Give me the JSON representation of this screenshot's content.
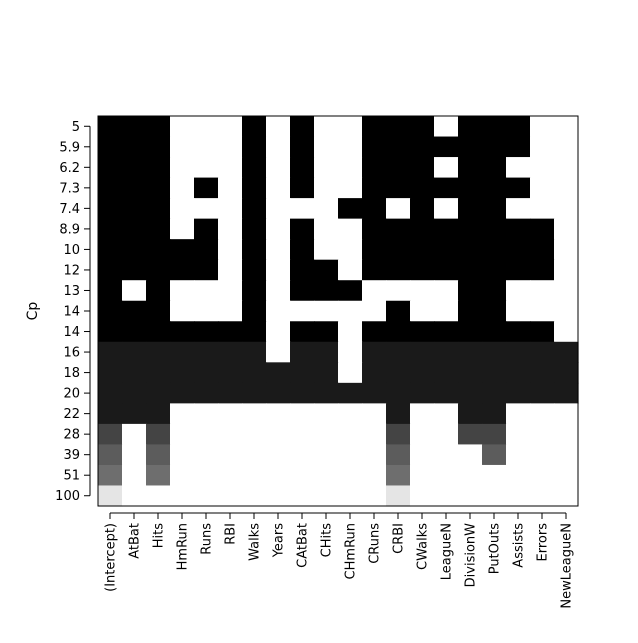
{
  "chart_data": {
    "type": "heatmap",
    "title": "",
    "ylabel": "Cp",
    "xlabel": "",
    "x_categories": [
      "(Intercept)",
      "AtBat",
      "Hits",
      "HmRun",
      "Runs",
      "RBI",
      "Walks",
      "Years",
      "CAtBat",
      "CHits",
      "CHmRun",
      "CRuns",
      "CRBI",
      "CWalks",
      "LeagueN",
      "DivisionW",
      "PutOuts",
      "Assists",
      "Errors",
      "NewLeagueN"
    ],
    "y_categories": [
      "5",
      "5.9",
      "6.2",
      "7.3",
      "7.4",
      "8.9",
      "10",
      "12",
      "13",
      "14",
      "14",
      "16",
      "18",
      "20",
      "22",
      "28",
      "39",
      "51",
      "100"
    ],
    "row_colors": [
      "#000000",
      "#000000",
      "#000000",
      "#000000",
      "#000000",
      "#000000",
      "#000000",
      "#000000",
      "#000000",
      "#000000",
      "#000000",
      "#1a1a1a",
      "#1a1a1a",
      "#1a1a1a",
      "#1a1a1a",
      "#444444",
      "#5c5c5c",
      "#6e6e6e",
      "#e5e5e5"
    ],
    "matrix": [
      [
        1,
        1,
        1,
        0,
        0,
        0,
        1,
        0,
        1,
        0,
        0,
        1,
        1,
        1,
        0,
        1,
        1,
        1,
        0,
        0
      ],
      [
        1,
        1,
        1,
        0,
        0,
        0,
        1,
        0,
        1,
        0,
        0,
        1,
        1,
        1,
        1,
        1,
        1,
        1,
        0,
        0
      ],
      [
        1,
        1,
        1,
        0,
        0,
        0,
        1,
        0,
        1,
        0,
        0,
        1,
        1,
        1,
        0,
        1,
        1,
        0,
        0,
        0
      ],
      [
        1,
        1,
        1,
        0,
        1,
        0,
        1,
        0,
        1,
        0,
        0,
        1,
        1,
        1,
        1,
        1,
        1,
        1,
        0,
        0
      ],
      [
        1,
        1,
        1,
        0,
        0,
        0,
        1,
        0,
        0,
        0,
        1,
        1,
        0,
        1,
        0,
        1,
        1,
        0,
        0,
        0
      ],
      [
        1,
        1,
        1,
        0,
        1,
        0,
        1,
        0,
        1,
        0,
        0,
        1,
        1,
        1,
        1,
        1,
        1,
        1,
        1,
        0
      ],
      [
        1,
        1,
        1,
        1,
        1,
        0,
        1,
        0,
        1,
        0,
        0,
        1,
        1,
        1,
        1,
        1,
        1,
        1,
        1,
        0
      ],
      [
        1,
        1,
        1,
        1,
        1,
        0,
        1,
        0,
        1,
        1,
        0,
        1,
        1,
        1,
        1,
        1,
        1,
        1,
        1,
        0
      ],
      [
        1,
        0,
        1,
        0,
        0,
        0,
        1,
        0,
        1,
        1,
        1,
        0,
        0,
        0,
        0,
        1,
        1,
        0,
        0,
        0
      ],
      [
        1,
        1,
        1,
        0,
        0,
        0,
        1,
        0,
        0,
        0,
        0,
        0,
        1,
        0,
        0,
        1,
        1,
        0,
        0,
        0
      ],
      [
        1,
        1,
        1,
        1,
        1,
        1,
        1,
        0,
        1,
        1,
        0,
        1,
        1,
        1,
        1,
        1,
        1,
        1,
        1,
        0
      ],
      [
        1,
        1,
        1,
        1,
        1,
        1,
        1,
        0,
        1,
        1,
        0,
        1,
        1,
        1,
        1,
        1,
        1,
        1,
        1,
        1
      ],
      [
        1,
        1,
        1,
        1,
        1,
        1,
        1,
        1,
        1,
        1,
        0,
        1,
        1,
        1,
        1,
        1,
        1,
        1,
        1,
        1
      ],
      [
        1,
        1,
        1,
        1,
        1,
        1,
        1,
        1,
        1,
        1,
        1,
        1,
        1,
        1,
        1,
        1,
        1,
        1,
        1,
        1
      ],
      [
        1,
        1,
        1,
        0,
        0,
        0,
        0,
        0,
        0,
        0,
        0,
        0,
        1,
        0,
        0,
        1,
        1,
        0,
        0,
        0
      ],
      [
        1,
        0,
        1,
        0,
        0,
        0,
        0,
        0,
        0,
        0,
        0,
        0,
        1,
        0,
        0,
        1,
        1,
        0,
        0,
        0
      ],
      [
        1,
        0,
        1,
        0,
        0,
        0,
        0,
        0,
        0,
        0,
        0,
        0,
        1,
        0,
        0,
        0,
        1,
        0,
        0,
        0
      ],
      [
        1,
        0,
        1,
        0,
        0,
        0,
        0,
        0,
        0,
        0,
        0,
        0,
        1,
        0,
        0,
        0,
        0,
        0,
        0,
        0
      ],
      [
        1,
        0,
        0,
        0,
        0,
        0,
        0,
        0,
        0,
        0,
        0,
        0,
        1,
        0,
        0,
        0,
        0,
        0,
        0,
        0
      ]
    ],
    "grid": false,
    "legend": "none"
  }
}
